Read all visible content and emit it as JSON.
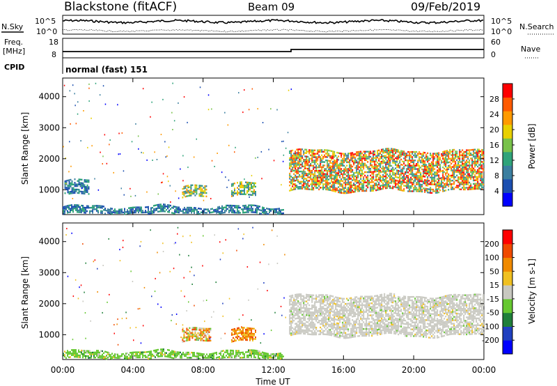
{
  "header": {
    "radar": "Blackstone (fitACF)",
    "beam": "Beam 09",
    "date": "09/Feb/2019"
  },
  "summary": {
    "nsky_label": "N.Sky",
    "nsearch_label": "N.Search",
    "noise_ticks": [
      "10^5",
      "10^0"
    ],
    "freq_label_line1": "Freq.",
    "freq_label_line2": "[MHz]",
    "freq_ticks": [
      "18",
      "8"
    ],
    "nave_label": "Nave",
    "nave_ticks": [
      "60",
      "0"
    ],
    "cpid_label": "CPID",
    "cpid_text": "normal (fast) 151"
  },
  "chart_data": [
    {
      "type": "heatmap",
      "name": "power",
      "xlabel": "Time UT",
      "ylabel": "Slant Range [km]",
      "x_ticks": [
        "00:00",
        "04:00",
        "08:00",
        "12:00",
        "16:00",
        "20:00",
        "00:00"
      ],
      "x_range_hours": [
        0,
        24
      ],
      "y_ticks": [
        1000,
        2000,
        3000,
        4000
      ],
      "ylim": [
        200,
        4600
      ],
      "colorbar": {
        "label": "Power [dB]",
        "ticks": [
          "28",
          "24",
          "20",
          "16",
          "12",
          "8",
          "4"
        ],
        "colors": [
          "#0000ff",
          "#1c4fb0",
          "#3b7fa0",
          "#2fa37a",
          "#78c24a",
          "#e8d000",
          "#ff9a00",
          "#ff5a00",
          "#ff0000"
        ]
      },
      "echo_regions": [
        {
          "t0": 0.1,
          "t1": 1.5,
          "r0": 860,
          "r1": 1330,
          "level": "low"
        },
        {
          "t0": 6.8,
          "t1": 8.2,
          "r0": 780,
          "r1": 1120,
          "level": "mid"
        },
        {
          "t0": 9.6,
          "t1": 11.0,
          "r0": 820,
          "r1": 1240,
          "level": "mid"
        },
        {
          "t0": 12.9,
          "t1": 24.0,
          "r0": 1000,
          "r1": 2300,
          "level": "high"
        },
        {
          "t0": 0.0,
          "t1": 12.6,
          "r0": 250,
          "r1": 500,
          "level": "low"
        }
      ]
    },
    {
      "type": "heatmap",
      "name": "velocity",
      "xlabel": "Time UT",
      "ylabel": "Slant Range [km]",
      "x_ticks": [
        "00:00",
        "04:00",
        "08:00",
        "12:00",
        "16:00",
        "20:00",
        "00:00"
      ],
      "x_range_hours": [
        0,
        24
      ],
      "y_ticks": [
        1000,
        2000,
        3000,
        4000
      ],
      "ylim": [
        200,
        4600
      ],
      "colorbar": {
        "label": "Velocity [m s-1]",
        "ticks": [
          "200",
          "100",
          "50",
          "15",
          "-15",
          "-50",
          "-100",
          "-200"
        ],
        "colors": [
          "#0000ff",
          "#2040c0",
          "#1f7f3a",
          "#66c830",
          "#c8c8c0",
          "#f0c020",
          "#f08a00",
          "#f04a00",
          "#ff0000"
        ]
      },
      "echo_regions": [
        {
          "t0": 12.9,
          "t1": 24.0,
          "r0": 1000,
          "r1": 2300,
          "level": "ground"
        },
        {
          "t0": 6.8,
          "t1": 8.4,
          "r0": 800,
          "r1": 1200,
          "level": "mixed"
        },
        {
          "t0": 9.6,
          "t1": 11.0,
          "r0": 800,
          "r1": 1200,
          "level": "negative"
        },
        {
          "t0": 0.0,
          "t1": 12.6,
          "r0": 250,
          "r1": 500,
          "level": "positive"
        }
      ]
    }
  ]
}
